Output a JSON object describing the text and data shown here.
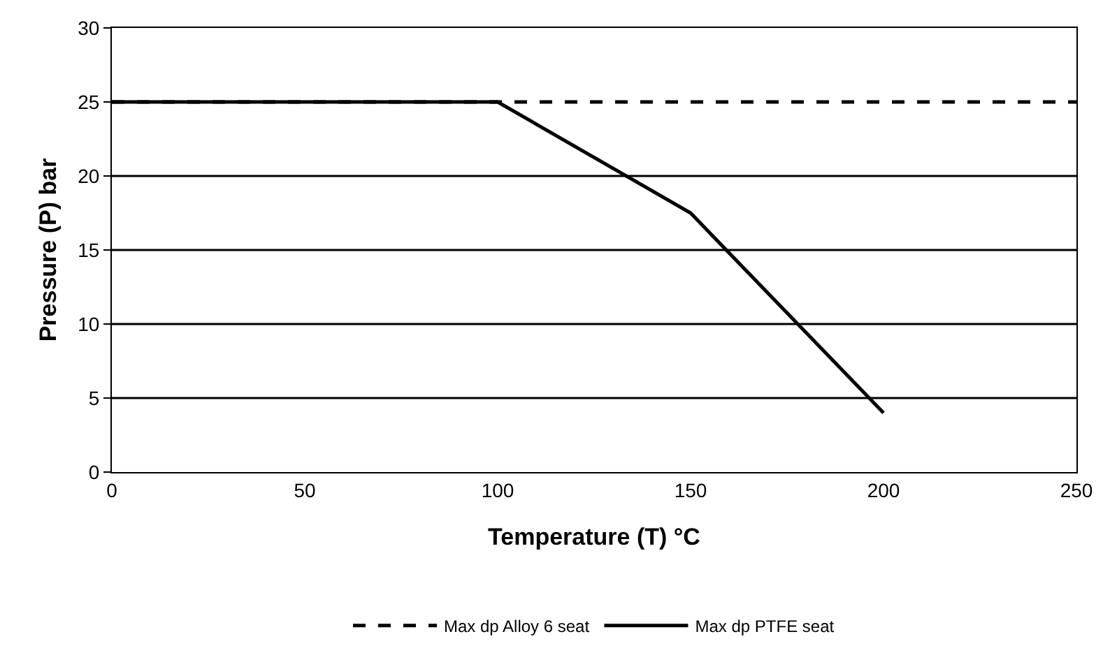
{
  "chart_data": {
    "type": "line",
    "xlabel": "Temperature (T) °C",
    "ylabel": "Pressure (P) bar",
    "series": [
      {
        "name": "Max dp Alloy 6 seat",
        "color": "#000000",
        "line_style": "dashed",
        "x": [
          0,
          250
        ],
        "values": [
          25,
          25
        ]
      },
      {
        "name": "Max dp PTFE seat",
        "color": "#000000",
        "line_style": "solid",
        "x": [
          0,
          100,
          150,
          200
        ],
        "values": [
          25,
          25,
          17.5,
          4
        ]
      }
    ],
    "xlim": [
      0,
      250
    ],
    "xticks": [
      0,
      50,
      100,
      150,
      200,
      250
    ],
    "ylim": [
      0,
      30
    ],
    "yticks": [
      0,
      5,
      10,
      15,
      20,
      25,
      30
    ],
    "grid": "y",
    "legend": "bottom",
    "marker": "none"
  }
}
